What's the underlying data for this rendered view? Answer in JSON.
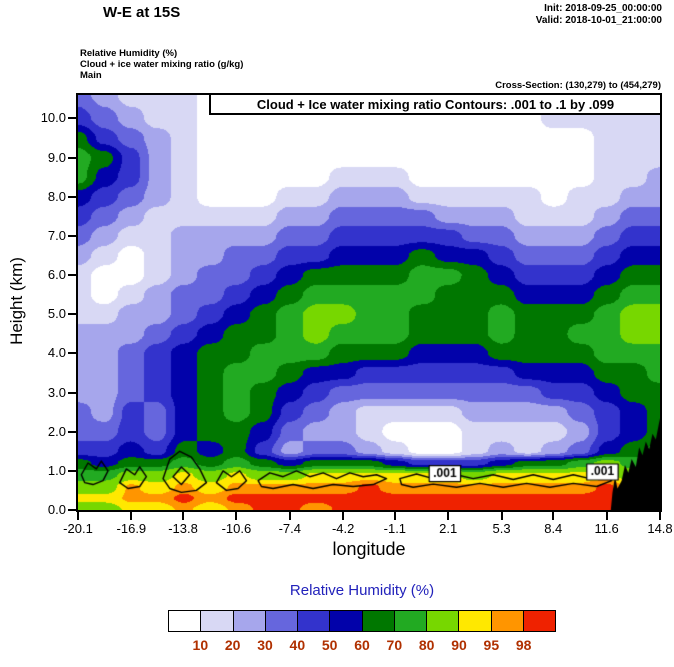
{
  "header": {
    "title": "W-E at 15S",
    "init": "Init: 2018-09-25_00:00:00",
    "valid": "Valid: 2018-10-01_21:00:00"
  },
  "meta": {
    "field1": "Relative Humidity  (%)",
    "field2": "Cloud + ice water mixing ratio  (g/kg)",
    "field3": "Main",
    "cross_section": "Cross-Section: (130,279) to (454,279)"
  },
  "chart_data": {
    "type": "heatmap",
    "title": "Cloud + Ice water mixing ratio Contours: .001 to .1 by .099",
    "xlabel": "longitude",
    "ylabel": "Height (km)",
    "xlim": [
      -20.1,
      14.8
    ],
    "ylim": [
      0,
      10.6
    ],
    "x_ticks": [
      "-20.1",
      "-16.9",
      "-13.8",
      "-10.6",
      "-7.4",
      "-4.2",
      "-1.1",
      "2.1",
      "5.3",
      "8.4",
      "11.6",
      "14.8"
    ],
    "y_ticks": [
      "0.0",
      "1.0",
      "2.0",
      "3.0",
      "4.0",
      "5.0",
      "6.0",
      "7.0",
      "8.0",
      "9.0",
      "10.0"
    ],
    "legend": {
      "title": "Relative Humidity  (%)",
      "levels": [
        10,
        20,
        30,
        40,
        50,
        60,
        70,
        80,
        90,
        95,
        98
      ],
      "labels": [
        "10",
        "20",
        "30",
        "40",
        "50",
        "60",
        "70",
        "80",
        "90",
        "95",
        "98"
      ],
      "colors": [
        "#ffffff",
        "#d8d8f4",
        "#a6a6ec",
        "#6666dd",
        "#3333cc",
        "#0202aa",
        "#007700",
        "#22aa22",
        "#77d700",
        "#ffe800",
        "#ff9500",
        "#ef2200"
      ],
      "title_color": "#2222bb",
      "label_color": "#b03000"
    },
    "rh_grid": {
      "note": "relative humidity (%) on lon x height grid, lon evenly spaced over xlim",
      "heights": [
        0,
        0.3,
        0.6,
        0.9,
        1.2,
        1.5,
        2,
        2.5,
        3,
        3.5,
        4,
        4.5,
        5,
        5.5,
        6,
        6.5,
        7,
        7.5,
        8,
        8.5,
        9,
        9.5,
        10,
        10.6
      ],
      "values": [
        [
          85,
          85,
          92,
          92,
          96,
          92,
          96,
          99,
          99,
          96,
          99,
          99,
          99,
          99,
          99,
          99,
          99,
          99,
          99,
          99,
          99,
          96,
          96
        ],
        [
          92,
          92,
          96,
          96,
          99,
          96,
          99,
          99,
          99,
          99,
          99,
          99,
          99,
          99,
          99,
          99,
          99,
          99,
          99,
          99,
          99,
          96,
          96
        ],
        [
          85,
          85,
          96,
          92,
          96,
          92,
          96,
          96,
          96,
          96,
          96,
          99,
          96,
          96,
          96,
          96,
          96,
          96,
          96,
          96,
          99,
          92,
          92
        ],
        [
          75,
          75,
          85,
          85,
          92,
          85,
          92,
          85,
          85,
          92,
          92,
          92,
          92,
          92,
          92,
          85,
          92,
          92,
          92,
          92,
          92,
          85,
          85
        ],
        [
          65,
          55,
          65,
          65,
          75,
          65,
          75,
          65,
          55,
          65,
          65,
          65,
          55,
          45,
          45,
          45,
          55,
          65,
          65,
          75,
          85,
          75,
          75
        ],
        [
          45,
          45,
          55,
          45,
          65,
          55,
          65,
          45,
          25,
          35,
          35,
          25,
          15,
          5,
          5,
          15,
          25,
          15,
          25,
          35,
          55,
          65,
          75
        ],
        [
          35,
          35,
          45,
          35,
          55,
          65,
          65,
          55,
          35,
          25,
          25,
          15,
          5,
          5,
          5,
          15,
          15,
          15,
          15,
          25,
          45,
          55,
          65
        ],
        [
          35,
          25,
          45,
          35,
          55,
          65,
          75,
          65,
          45,
          35,
          25,
          15,
          15,
          15,
          15,
          25,
          25,
          25,
          25,
          35,
          45,
          55,
          65
        ],
        [
          25,
          25,
          35,
          45,
          55,
          65,
          75,
          65,
          55,
          45,
          35,
          35,
          35,
          35,
          35,
          35,
          35,
          35,
          45,
          45,
          55,
          65,
          65
        ],
        [
          25,
          25,
          35,
          45,
          55,
          65,
          75,
          75,
          65,
          55,
          55,
          45,
          45,
          45,
          45,
          45,
          45,
          55,
          55,
          55,
          65,
          65,
          75
        ],
        [
          25,
          25,
          35,
          45,
          55,
          65,
          65,
          75,
          75,
          75,
          65,
          65,
          65,
          55,
          55,
          55,
          65,
          65,
          65,
          65,
          75,
          75,
          75
        ],
        [
          25,
          25,
          25,
          35,
          45,
          55,
          65,
          65,
          75,
          85,
          75,
          75,
          75,
          65,
          65,
          65,
          75,
          65,
          65,
          75,
          75,
          85,
          85
        ],
        [
          15,
          15,
          25,
          25,
          35,
          45,
          55,
          65,
          75,
          85,
          85,
          75,
          75,
          65,
          65,
          65,
          75,
          65,
          65,
          65,
          75,
          85,
          85
        ],
        [
          15,
          5,
          15,
          25,
          35,
          35,
          45,
          55,
          65,
          75,
          75,
          75,
          75,
          75,
          65,
          65,
          65,
          55,
          55,
          55,
          65,
          75,
          75
        ],
        [
          15,
          5,
          5,
          15,
          25,
          35,
          35,
          45,
          55,
          65,
          65,
          65,
          65,
          75,
          75,
          65,
          55,
          45,
          45,
          45,
          55,
          65,
          65
        ],
        [
          25,
          15,
          5,
          15,
          25,
          25,
          35,
          35,
          45,
          45,
          55,
          55,
          55,
          65,
          55,
          55,
          45,
          35,
          35,
          35,
          45,
          55,
          55
        ],
        [
          35,
          25,
          15,
          15,
          25,
          25,
          25,
          25,
          35,
          35,
          45,
          45,
          45,
          45,
          45,
          35,
          35,
          25,
          25,
          25,
          35,
          45,
          45
        ],
        [
          45,
          35,
          25,
          15,
          15,
          15,
          15,
          15,
          25,
          25,
          35,
          35,
          35,
          35,
          25,
          25,
          25,
          15,
          15,
          15,
          25,
          35,
          35
        ],
        [
          55,
          45,
          35,
          25,
          15,
          5,
          5,
          5,
          15,
          15,
          25,
          25,
          25,
          15,
          15,
          15,
          15,
          15,
          5,
          15,
          15,
          25,
          25
        ],
        [
          75,
          55,
          45,
          25,
          15,
          5,
          5,
          5,
          5,
          5,
          15,
          15,
          15,
          5,
          5,
          5,
          5,
          5,
          5,
          5,
          15,
          15,
          25
        ],
        [
          75,
          65,
          45,
          25,
          15,
          5,
          5,
          5,
          5,
          5,
          5,
          5,
          5,
          5,
          5,
          5,
          5,
          5,
          5,
          5,
          15,
          15,
          15
        ],
        [
          65,
          45,
          35,
          25,
          15,
          5,
          5,
          5,
          5,
          5,
          5,
          5,
          5,
          5,
          5,
          5,
          5,
          5,
          5,
          5,
          15,
          15,
          15
        ],
        [
          45,
          35,
          25,
          15,
          15,
          5,
          5,
          5,
          5,
          5,
          5,
          5,
          5,
          5,
          5,
          5,
          5,
          5,
          15,
          15,
          15,
          15,
          15
        ],
        [
          35,
          25,
          15,
          15,
          15,
          5,
          5,
          5,
          5,
          5,
          5,
          5,
          5,
          15,
          15,
          15,
          15,
          15,
          15,
          15,
          15,
          15,
          15
        ]
      ]
    },
    "terrain": [
      [
        11.85,
        0
      ],
      [
        11.95,
        0.45
      ],
      [
        12.1,
        0.85
      ],
      [
        12.25,
        0.55
      ],
      [
        12.5,
        0.75
      ],
      [
        12.7,
        1.15
      ],
      [
        12.9,
        0.95
      ],
      [
        13.1,
        1.3
      ],
      [
        13.35,
        1.1
      ],
      [
        13.55,
        1.6
      ],
      [
        13.75,
        1.4
      ],
      [
        13.95,
        1.75
      ],
      [
        14.15,
        1.55
      ],
      [
        14.35,
        1.95
      ],
      [
        14.55,
        1.8
      ],
      [
        14.8,
        2.35
      ],
      [
        14.8,
        0
      ]
    ],
    "cloud_contours": {
      "label": ".001",
      "label_positions": [
        [
          1.9,
          0.93
        ],
        [
          11.35,
          0.97
        ]
      ],
      "paths": [
        [
          [
            -19.9,
            0.9
          ],
          [
            -19.5,
            1.2
          ],
          [
            -19.0,
            1.05
          ],
          [
            -18.7,
            1.25
          ],
          [
            -18.3,
            1.0
          ],
          [
            -18.6,
            0.75
          ],
          [
            -19.2,
            0.65
          ],
          [
            -19.7,
            0.7
          ]
        ],
        [
          [
            -17.6,
            0.7
          ],
          [
            -17.2,
            1.05
          ],
          [
            -16.7,
            0.9
          ],
          [
            -16.4,
            1.1
          ],
          [
            -16.0,
            0.85
          ],
          [
            -16.4,
            0.6
          ],
          [
            -17.1,
            0.55
          ]
        ],
        [
          [
            -15.0,
            0.8
          ],
          [
            -14.6,
            1.3
          ],
          [
            -14.0,
            1.5
          ],
          [
            -13.3,
            1.35
          ],
          [
            -12.8,
            1.05
          ],
          [
            -12.4,
            0.7
          ],
          [
            -13.0,
            0.5
          ],
          [
            -13.9,
            0.45
          ],
          [
            -14.6,
            0.55
          ]
        ],
        [
          [
            -14.4,
            0.85
          ],
          [
            -13.9,
            1.1
          ],
          [
            -13.4,
            0.9
          ],
          [
            -13.9,
            0.65
          ]
        ],
        [
          [
            -11.8,
            0.7
          ],
          [
            -11.4,
            1.0
          ],
          [
            -10.9,
            0.85
          ],
          [
            -10.4,
            1.0
          ],
          [
            -10.0,
            0.75
          ],
          [
            -10.5,
            0.55
          ],
          [
            -11.2,
            0.5
          ]
        ],
        [
          [
            -9.3,
            0.75
          ],
          [
            -8.6,
            0.95
          ],
          [
            -7.8,
            0.85
          ],
          [
            -7.0,
            1.0
          ],
          [
            -6.2,
            0.85
          ],
          [
            -5.4,
            0.95
          ],
          [
            -4.6,
            0.8
          ],
          [
            -3.8,
            0.95
          ],
          [
            -3.0,
            0.85
          ],
          [
            -2.2,
            0.9
          ],
          [
            -1.6,
            0.8
          ],
          [
            -2.4,
            0.65
          ],
          [
            -3.6,
            0.6
          ],
          [
            -4.8,
            0.65
          ],
          [
            -6.0,
            0.55
          ],
          [
            -7.2,
            0.65
          ],
          [
            -8.4,
            0.55
          ],
          [
            -9.1,
            0.6
          ]
        ],
        [
          [
            -0.8,
            0.8
          ],
          [
            0.2,
            0.92
          ],
          [
            1.2,
            0.8
          ],
          [
            2.4,
            0.92
          ],
          [
            3.6,
            0.8
          ],
          [
            4.8,
            0.9
          ],
          [
            6.0,
            0.78
          ],
          [
            7.2,
            0.9
          ],
          [
            8.4,
            0.78
          ],
          [
            9.6,
            0.9
          ],
          [
            10.6,
            0.8
          ],
          [
            11.4,
            0.92
          ],
          [
            11.9,
            0.75
          ],
          [
            11.0,
            0.6
          ],
          [
            9.6,
            0.68
          ],
          [
            8.2,
            0.58
          ],
          [
            6.8,
            0.68
          ],
          [
            5.4,
            0.58
          ],
          [
            4.0,
            0.68
          ],
          [
            2.6,
            0.58
          ],
          [
            1.2,
            0.66
          ],
          [
            0.0,
            0.58
          ],
          [
            -0.7,
            0.65
          ]
        ]
      ]
    }
  }
}
